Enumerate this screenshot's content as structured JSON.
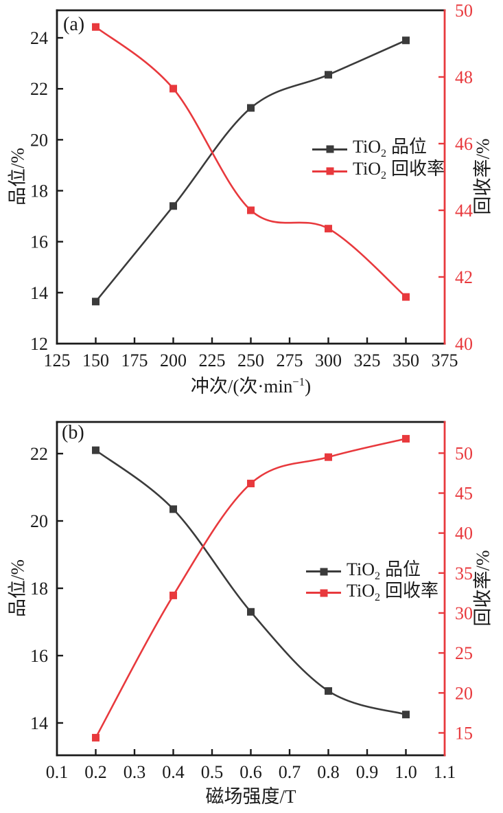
{
  "figure": {
    "background": "#ffffff"
  },
  "colors": {
    "frame": "#1a1a1a",
    "grade_series": "#3b3b3b",
    "recovery_series": "#e8393d",
    "tick_label_left": "#1a1a1a",
    "tick_label_right": "#e8393d"
  },
  "chart_data": [
    {
      "id": "a",
      "type": "line",
      "panel_label": "(a)",
      "x_axis": {
        "label_pre": "冲次/(次·min",
        "label_sup": "−1",
        "label_post": ")",
        "min": 125,
        "max": 375,
        "ticks": [
          125,
          150,
          175,
          200,
          225,
          250,
          275,
          300,
          325,
          350,
          375
        ],
        "decimals": 0
      },
      "left_axis": {
        "label": "品位/%",
        "min": 12,
        "max": 25.08,
        "ticks": [
          12,
          14,
          16,
          18,
          20,
          22,
          24
        ],
        "decimals": 0
      },
      "right_axis": {
        "label": "回收率/%",
        "min": 40,
        "max": 50,
        "ticks": [
          40,
          42,
          44,
          46,
          48,
          50
        ],
        "decimals": 0
      },
      "legend": [
        {
          "formula": "TiO",
          "formula_sub": "2",
          "label": "品位"
        },
        {
          "formula": "TiO",
          "formula_sub": "2",
          "label": "回收率"
        }
      ],
      "series": [
        {
          "key": "grade",
          "name": "TiO2 品位",
          "axis": "left",
          "color": "#3b3b3b",
          "x": [
            150,
            200,
            250,
            300,
            350
          ],
          "y": [
            13.65,
            17.4,
            21.25,
            22.55,
            23.9
          ]
        },
        {
          "key": "recovery",
          "name": "TiO2 回收率",
          "axis": "right",
          "color": "#e8393d",
          "x": [
            150,
            200,
            250,
            300,
            350
          ],
          "y": [
            49.5,
            47.65,
            44.0,
            43.45,
            41.4
          ]
        }
      ]
    },
    {
      "id": "b",
      "type": "line",
      "panel_label": "(b)",
      "x_axis": {
        "label_pre": "磁场强度/T",
        "label_sup": "",
        "label_post": "",
        "min": 0.1,
        "max": 1.1,
        "ticks": [
          0.1,
          0.2,
          0.3,
          0.4,
          0.5,
          0.6,
          0.7,
          0.8,
          0.9,
          1.0,
          1.1
        ],
        "decimals": 1
      },
      "left_axis": {
        "label": "品位/%",
        "min": 13.04,
        "max": 22.94,
        "ticks": [
          14,
          16,
          18,
          20,
          22
        ],
        "decimals": 0
      },
      "right_axis": {
        "label": "回收率/%",
        "min": 12.2,
        "max": 53.9,
        "ticks": [
          15,
          20,
          25,
          30,
          35,
          40,
          45,
          50
        ],
        "decimals": 0
      },
      "legend": [
        {
          "formula": "TiO",
          "formula_sub": "2",
          "label": "品位"
        },
        {
          "formula": "TiO",
          "formula_sub": "2",
          "label": "回收率"
        }
      ],
      "series": [
        {
          "key": "grade",
          "name": "TiO2 品位",
          "axis": "left",
          "color": "#3b3b3b",
          "x": [
            0.2,
            0.4,
            0.6,
            0.8,
            1.0
          ],
          "y": [
            22.1,
            20.35,
            17.3,
            14.95,
            14.25
          ]
        },
        {
          "key": "recovery",
          "name": "TiO2 回收率",
          "axis": "right",
          "color": "#e8393d",
          "x": [
            0.2,
            0.4,
            0.6,
            0.8,
            1.0
          ],
          "y": [
            14.4,
            32.2,
            46.2,
            49.5,
            51.8
          ]
        }
      ]
    }
  ]
}
